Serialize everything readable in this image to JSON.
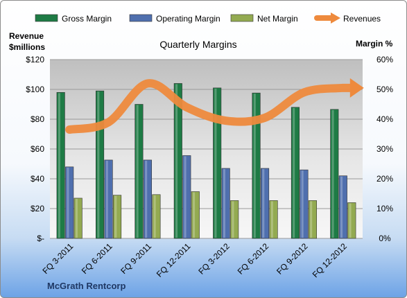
{
  "chart_data": {
    "type": "bar",
    "title": "Quarterly Margins",
    "ylabel_left": [
      "Revenue",
      "$millions"
    ],
    "ylabel_right": "Margin %",
    "footer": "McGrath Rentcorp",
    "categories": [
      "FQ 3-2011",
      "FQ 6-2011",
      "FQ 9-2011",
      "FQ 12-2011",
      "FQ 3-2012",
      "FQ 6-2012",
      "FQ 9-2012",
      "FQ 12-2012"
    ],
    "ylim_left": [
      0,
      120
    ],
    "ylim_right": [
      0,
      60
    ],
    "left_ticks": [
      "$-",
      "$20",
      "$40",
      "$60",
      "$80",
      "$100",
      "$120"
    ],
    "right_ticks": [
      "0%",
      "10%",
      "20%",
      "30%",
      "40%",
      "50%",
      "60%"
    ],
    "grid": true,
    "legend_position": "top",
    "series": [
      {
        "name": "Gross Margin",
        "type": "bar",
        "axis": "right",
        "color": "#1e7b45",
        "values": [
          49,
          49.5,
          45,
          52,
          50.5,
          48.8,
          44,
          43.3
        ]
      },
      {
        "name": "Operating Margin",
        "type": "bar",
        "axis": "right",
        "color": "#4f6fae",
        "values": [
          24,
          26.3,
          26.3,
          27.8,
          23.5,
          23.5,
          23,
          21
        ]
      },
      {
        "name": "Net Margin",
        "type": "bar",
        "axis": "right",
        "color": "#93aa51",
        "values": [
          13.5,
          14.5,
          14.7,
          15.7,
          12.7,
          12.7,
          12.7,
          12
        ]
      },
      {
        "name": "Revenues",
        "type": "line",
        "axis": "left",
        "color": "#ee8a3d",
        "values": [
          73,
          78,
          104,
          88,
          79,
          81,
          98,
          101
        ]
      }
    ]
  }
}
